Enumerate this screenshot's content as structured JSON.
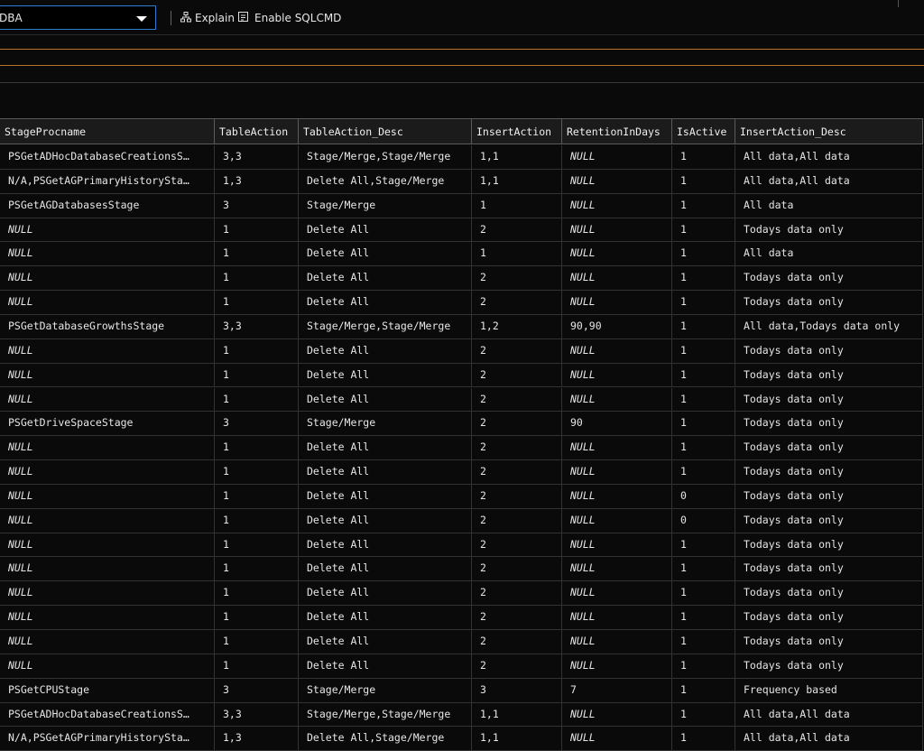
{
  "toolbar": {
    "database": "DBA",
    "explain": "Explain",
    "sqlcmd": "Enable SQLCMD"
  },
  "table": {
    "columns": [
      "StageProcname",
      "TableAction",
      "TableAction_Desc",
      "InsertAction",
      "RetentionInDays",
      "IsActive",
      "InsertAction_Desc"
    ],
    "rows": [
      [
        "PSGetADHocDatabaseCreationsS…",
        "3,3",
        "Stage/Merge,Stage/Merge",
        "1,1",
        "NULL",
        "1",
        "All data,All data"
      ],
      [
        "N/A,PSGetAGPrimaryHistorySta…",
        "1,3",
        "Delete All,Stage/Merge",
        "1,1",
        "NULL",
        "1",
        "All data,All data"
      ],
      [
        "PSGetAGDatabasesStage",
        "3",
        "Stage/Merge",
        "1",
        "NULL",
        "1",
        "All data"
      ],
      [
        "NULL",
        "1",
        "Delete All",
        "2",
        "NULL",
        "1",
        "Todays data only"
      ],
      [
        "NULL",
        "1",
        "Delete All",
        "1",
        "NULL",
        "1",
        "All data"
      ],
      [
        "NULL",
        "1",
        "Delete All",
        "2",
        "NULL",
        "1",
        "Todays data only"
      ],
      [
        "NULL",
        "1",
        "Delete All",
        "2",
        "NULL",
        "1",
        "Todays data only"
      ],
      [
        "PSGetDatabaseGrowthsStage",
        "3,3",
        "Stage/Merge,Stage/Merge",
        "1,2",
        "90,90",
        "1",
        "All data,Todays data only"
      ],
      [
        "NULL",
        "1",
        "Delete All",
        "2",
        "NULL",
        "1",
        "Todays data only"
      ],
      [
        "NULL",
        "1",
        "Delete All",
        "2",
        "NULL",
        "1",
        "Todays data only"
      ],
      [
        "NULL",
        "1",
        "Delete All",
        "2",
        "NULL",
        "1",
        "Todays data only"
      ],
      [
        "PSGetDriveSpaceStage",
        "3",
        "Stage/Merge",
        "2",
        "90",
        "1",
        "Todays data only"
      ],
      [
        "NULL",
        "1",
        "Delete All",
        "2",
        "NULL",
        "1",
        "Todays data only"
      ],
      [
        "NULL",
        "1",
        "Delete All",
        "2",
        "NULL",
        "1",
        "Todays data only"
      ],
      [
        "NULL",
        "1",
        "Delete All",
        "2",
        "NULL",
        "0",
        "Todays data only"
      ],
      [
        "NULL",
        "1",
        "Delete All",
        "2",
        "NULL",
        "0",
        "Todays data only"
      ],
      [
        "NULL",
        "1",
        "Delete All",
        "2",
        "NULL",
        "1",
        "Todays data only"
      ],
      [
        "NULL",
        "1",
        "Delete All",
        "2",
        "NULL",
        "1",
        "Todays data only"
      ],
      [
        "NULL",
        "1",
        "Delete All",
        "2",
        "NULL",
        "1",
        "Todays data only"
      ],
      [
        "NULL",
        "1",
        "Delete All",
        "2",
        "NULL",
        "1",
        "Todays data only"
      ],
      [
        "NULL",
        "1",
        "Delete All",
        "2",
        "NULL",
        "1",
        "Todays data only"
      ],
      [
        "NULL",
        "1",
        "Delete All",
        "2",
        "NULL",
        "1",
        "Todays data only"
      ],
      [
        "PSGetCPUStage",
        "3",
        "Stage/Merge",
        "3",
        "7",
        "1",
        "Frequency based"
      ],
      [
        "PSGetADHocDatabaseCreationsS…",
        "3,3",
        "Stage/Merge,Stage/Merge",
        "1,1",
        "NULL",
        "1",
        "All data,All data"
      ],
      [
        "N/A,PSGetAGPrimaryHistorySta…",
        "1,3",
        "Delete All,Stage/Merge",
        "1,1",
        "NULL",
        "1",
        "All data,All data"
      ]
    ]
  }
}
